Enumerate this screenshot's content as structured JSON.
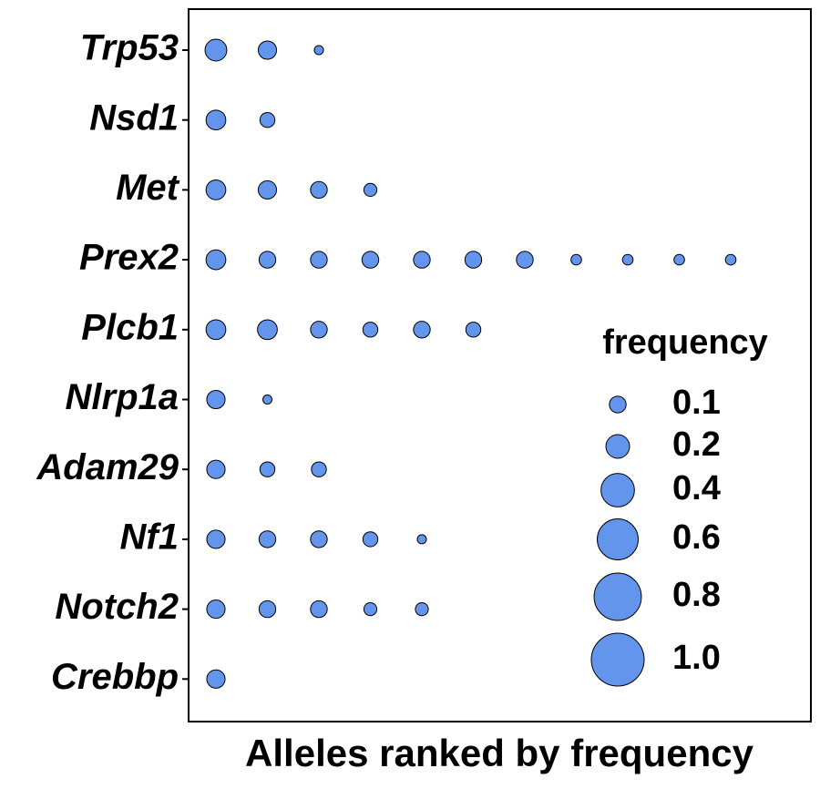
{
  "chart_data": {
    "type": "bubble",
    "x_label": "Alleles ranked by frequency",
    "categories": [
      "Trp53",
      "Nsd1",
      "Met",
      "Prex2",
      "Plcb1",
      "Nlrp1a",
      "Adam29",
      "Nf1",
      "Notch2",
      "Crebbp"
    ],
    "values": [
      [
        0.17,
        0.12,
        0.03
      ],
      [
        0.14,
        0.08
      ],
      [
        0.14,
        0.12,
        0.1,
        0.06
      ],
      [
        0.14,
        0.1,
        0.1,
        0.1,
        0.1,
        0.1,
        0.1,
        0.04,
        0.04,
        0.04,
        0.04
      ],
      [
        0.14,
        0.14,
        0.1,
        0.08,
        0.1,
        0.08
      ],
      [
        0.12,
        0.03
      ],
      [
        0.12,
        0.08,
        0.08
      ],
      [
        0.12,
        0.1,
        0.1,
        0.08,
        0.03
      ],
      [
        0.12,
        0.1,
        0.1,
        0.06,
        0.06
      ],
      [
        0.12
      ]
    ],
    "color": "#6495ed",
    "size_legend": {
      "title": "frequency",
      "values": [
        0.1,
        0.2,
        0.4,
        0.6,
        0.8,
        {
          "value": 1,
          "label": "1.0"
        }
      ]
    }
  }
}
